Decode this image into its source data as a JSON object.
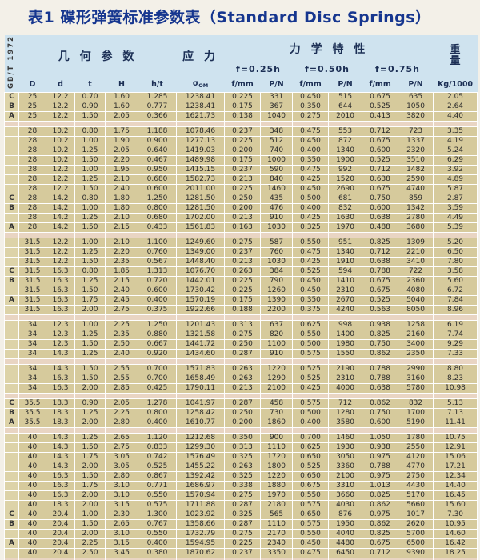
{
  "title": "表1 碟形弹簧标准参数表（Standard Disc Springs）",
  "standard_label": "GB/T 1972",
  "colors": {
    "title_text": "#16368f",
    "header_bg": "#cfe3ef",
    "row_bg": "#d6ca9c",
    "separator_bg": "#e9d5c3",
    "grid_line": "#ffffff",
    "watermark_pink": "#e87f95"
  },
  "header": {
    "geometry": "几 何 参 数",
    "stress": "应 力",
    "mechanical": "力 学 特 性",
    "weight_line1": "重",
    "weight_line2": "量",
    "deflections": [
      "f=0.25h",
      "f=0.50h",
      "f=0.75h"
    ],
    "columns": [
      "D",
      "d",
      "t",
      "H",
      "h/t",
      {
        "sym": "σ",
        "sub": "OM"
      },
      "f/mm",
      "P/N",
      "f/mm",
      "P/N",
      "f/mm",
      "P/N",
      "Kg/1000"
    ]
  },
  "table": {
    "groups": [
      {
        "rows": [
          [
            "C",
            "25",
            "12.2",
            "0.70",
            "1.60",
            "1.285",
            "1238.41",
            "0.225",
            "331",
            "0.450",
            "515",
            "0.675",
            "635",
            "2.05"
          ],
          [
            "B",
            "25",
            "12.2",
            "0.90",
            "1.60",
            "0.777",
            "1238.41",
            "0.175",
            "367",
            "0.350",
            "644",
            "0.525",
            "1050",
            "2.64"
          ],
          [
            "A",
            "25",
            "12.2",
            "1.50",
            "2.05",
            "0.366",
            "1621.73",
            "0.138",
            "1040",
            "0.275",
            "2010",
            "0.413",
            "3820",
            "4.40"
          ]
        ]
      },
      {
        "rows": [
          [
            "",
            "28",
            "10.2",
            "0.80",
            "1.75",
            "1.188",
            "1078.46",
            "0.237",
            "348",
            "0.475",
            "553",
            "0.712",
            "723",
            "3.35"
          ],
          [
            "",
            "28",
            "10.2",
            "1.00",
            "1.90",
            "0.900",
            "1277.13",
            "0.225",
            "512",
            "0.450",
            "872",
            "0.675",
            "1337",
            "4.19"
          ],
          [
            "",
            "28",
            "10.2",
            "1.25",
            "2.05",
            "0.640",
            "1419.03",
            "0.200",
            "740",
            "0.400",
            "1340",
            "0.600",
            "2320",
            "5.24"
          ],
          [
            "",
            "28",
            "10.2",
            "1.50",
            "2.20",
            "0.467",
            "1489.98",
            "0.175",
            "1000",
            "0.350",
            "1900",
            "0.525",
            "3510",
            "6.29"
          ],
          [
            "",
            "28",
            "12.2",
            "1.00",
            "1.95",
            "0.950",
            "1415.15",
            "0.237",
            "590",
            "0.475",
            "992",
            "0.712",
            "1482",
            "3.92"
          ],
          [
            "",
            "28",
            "12.2",
            "1.25",
            "2.10",
            "0.680",
            "1582.73",
            "0.213",
            "840",
            "0.425",
            "1520",
            "0.638",
            "2590",
            "4.89"
          ],
          [
            "",
            "28",
            "12.2",
            "1.50",
            "2.40",
            "0.600",
            "2011.00",
            "0.225",
            "1460",
            "0.450",
            "2690",
            "0.675",
            "4740",
            "5.87"
          ],
          [
            "C",
            "28",
            "14.2",
            "0.80",
            "1.80",
            "1.250",
            "1281.50",
            "0.250",
            "435",
            "0.500",
            "681",
            "0.750",
            "859",
            "2.87"
          ],
          [
            "B",
            "28",
            "14.2",
            "1.00",
            "1.80",
            "0.800",
            "1281.50",
            "0.200",
            "476",
            "0.400",
            "832",
            "0.600",
            "1342",
            "3.59"
          ],
          [
            "",
            "28",
            "14.2",
            "1.25",
            "2.10",
            "0.680",
            "1702.00",
            "0.213",
            "910",
            "0.425",
            "1630",
            "0.638",
            "2780",
            "4.49"
          ],
          [
            "A",
            "28",
            "14.2",
            "1.50",
            "2.15",
            "0.433",
            "1561.83",
            "0.163",
            "1030",
            "0.325",
            "1970",
            "0.488",
            "3680",
            "5.39"
          ]
        ]
      },
      {
        "rows": [
          [
            "",
            "31.5",
            "12.2",
            "1.00",
            "2.10",
            "1.100",
            "1249.60",
            "0.275",
            "587",
            "0.550",
            "951",
            "0.825",
            "1309",
            "5.20"
          ],
          [
            "",
            "31.5",
            "12.2",
            "1.25",
            "2.20",
            "0.760",
            "1349.00",
            "0.237",
            "760",
            "0.475",
            "1340",
            "0.712",
            "2210",
            "6.50"
          ],
          [
            "",
            "31.5",
            "12.2",
            "1.50",
            "2.35",
            "0.567",
            "1448.40",
            "0.213",
            "1030",
            "0.425",
            "1910",
            "0.638",
            "3410",
            "7.80"
          ],
          [
            "C",
            "31.5",
            "16.3",
            "0.80",
            "1.85",
            "1.313",
            "1076.70",
            "0.263",
            "384",
            "0.525",
            "594",
            "0.788",
            "722",
            "3.58"
          ],
          [
            "B",
            "31.5",
            "16.3",
            "1.25",
            "2.15",
            "0.720",
            "1442.01",
            "0.225",
            "790",
            "0.450",
            "1410",
            "0.675",
            "2360",
            "5.60"
          ],
          [
            "",
            "31.5",
            "16.3",
            "1.50",
            "2.40",
            "0.600",
            "1730.42",
            "0.225",
            "1260",
            "0.450",
            "2310",
            "0.675",
            "4080",
            "6.72"
          ],
          [
            "A",
            "31.5",
            "16.3",
            "1.75",
            "2.45",
            "0.400",
            "1570.19",
            "0.175",
            "1390",
            "0.350",
            "2670",
            "0.525",
            "5040",
            "7.84"
          ],
          [
            "",
            "31.5",
            "16.3",
            "2.00",
            "2.75",
            "0.375",
            "1922.66",
            "0.188",
            "2200",
            "0.375",
            "4240",
            "0.563",
            "8050",
            "8.96"
          ]
        ]
      },
      {
        "rows": [
          [
            "",
            "34",
            "12.3",
            "1.00",
            "2.25",
            "1.250",
            "1201.43",
            "0.313",
            "637",
            "0.625",
            "998",
            "0.938",
            "1258",
            "6.19"
          ],
          [
            "",
            "34",
            "12.3",
            "1.25",
            "2.35",
            "0.880",
            "1321.58",
            "0.275",
            "820",
            "0.550",
            "1400",
            "0.825",
            "2160",
            "7.74"
          ],
          [
            "",
            "34",
            "12.3",
            "1.50",
            "2.50",
            "0.667",
            "1441.72",
            "0.250",
            "1100",
            "0.500",
            "1980",
            "0.750",
            "3400",
            "9.29"
          ],
          [
            "",
            "34",
            "14.3",
            "1.25",
            "2.40",
            "0.920",
            "1434.60",
            "0.287",
            "910",
            "0.575",
            "1550",
            "0.862",
            "2350",
            "7.33"
          ]
        ]
      },
      {
        "rows": [
          [
            "",
            "34",
            "14.3",
            "1.50",
            "2.55",
            "0.700",
            "1571.83",
            "0.263",
            "1220",
            "0.525",
            "2190",
            "0.788",
            "2990",
            "8.80"
          ],
          [
            "",
            "34",
            "16.3",
            "1.50",
            "2.55",
            "0.700",
            "1658.49",
            "0.263",
            "1290",
            "0.525",
            "2310",
            "0.788",
            "3160",
            "8.23"
          ],
          [
            "",
            "34",
            "16.3",
            "2.00",
            "2.85",
            "0.425",
            "1790.11",
            "0.213",
            "2100",
            "0.425",
            "4000",
            "0.638",
            "5780",
            "10.98"
          ]
        ]
      },
      {
        "rows": [
          [
            "C",
            "35.5",
            "18.3",
            "0.90",
            "2.05",
            "1.278",
            "1041.97",
            "0.287",
            "458",
            "0.575",
            "712",
            "0.862",
            "832",
            "5.13"
          ],
          [
            "B",
            "35.5",
            "18.3",
            "1.25",
            "2.25",
            "0.800",
            "1258.42",
            "0.250",
            "730",
            "0.500",
            "1280",
            "0.750",
            "1700",
            "7.13"
          ],
          [
            "A",
            "35.5",
            "18.3",
            "2.00",
            "2.80",
            "0.400",
            "1610.77",
            "0.200",
            "1860",
            "0.400",
            "3580",
            "0.600",
            "5190",
            "11.41"
          ]
        ]
      },
      {
        "rows": [
          [
            "",
            "40",
            "14.3",
            "1.25",
            "2.65",
            "1.120",
            "1212.68",
            "0.350",
            "900",
            "0.700",
            "1460",
            "1.050",
            "1780",
            "10.75"
          ],
          [
            "",
            "40",
            "14.3",
            "1.50",
            "2.75",
            "0.833",
            "1299.30",
            "0.313",
            "1110",
            "0.625",
            "1930",
            "0.938",
            "2550",
            "12.91"
          ],
          [
            "",
            "40",
            "14.3",
            "1.75",
            "3.05",
            "0.742",
            "1576.49",
            "0.325",
            "1720",
            "0.650",
            "3050",
            "0.975",
            "4120",
            "15.06"
          ],
          [
            "",
            "40",
            "14.3",
            "2.00",
            "3.05",
            "0.525",
            "1455.22",
            "0.263",
            "1800",
            "0.525",
            "3360",
            "0.788",
            "4770",
            "17.21"
          ],
          [
            "",
            "40",
            "16.3",
            "1.50",
            "2.80",
            "0.867",
            "1392.42",
            "0.325",
            "1220",
            "0.650",
            "2100",
            "0.975",
            "2750",
            "12.34"
          ],
          [
            "",
            "40",
            "16.3",
            "1.75",
            "3.10",
            "0.771",
            "1686.97",
            "0.338",
            "1880",
            "0.675",
            "3310",
            "1.013",
            "4430",
            "14.40"
          ],
          [
            "",
            "40",
            "16.3",
            "2.00",
            "3.10",
            "0.550",
            "1570.94",
            "0.275",
            "1970",
            "0.550",
            "3660",
            "0.825",
            "5170",
            "16.45"
          ],
          [
            "",
            "40",
            "18.3",
            "2.00",
            "3.15",
            "0.575",
            "1711.88",
            "0.287",
            "2180",
            "0.575",
            "4030",
            "0.862",
            "5660",
            "15.60"
          ],
          [
            "C",
            "40",
            "20.4",
            "1.00",
            "2.30",
            "1.300",
            "1023.92",
            "0.325",
            "565",
            "0.650",
            "876",
            "0.975",
            "1017",
            "7.30"
          ],
          [
            "B",
            "40",
            "20.4",
            "1.50",
            "2.65",
            "0.767",
            "1358.66",
            "0.287",
            "1110",
            "0.575",
            "1950",
            "0.862",
            "2620",
            "10.95"
          ],
          [
            "",
            "40",
            "20.4",
            "2.00",
            "3.10",
            "0.550",
            "1732.79",
            "0.275",
            "2170",
            "0.550",
            "4040",
            "0.825",
            "5700",
            "14.60"
          ],
          [
            "A",
            "40",
            "20.4",
            "2.25",
            "3.15",
            "0.400",
            "1594.95",
            "0.225",
            "2340",
            "0.450",
            "4480",
            "0.675",
            "6500",
            "16.42"
          ],
          [
            "",
            "40",
            "20.4",
            "2.50",
            "3.45",
            "0.380",
            "1870.62",
            "0.237",
            "3350",
            "0.475",
            "6450",
            "0.712",
            "9390",
            "18.25"
          ]
        ]
      }
    ]
  }
}
